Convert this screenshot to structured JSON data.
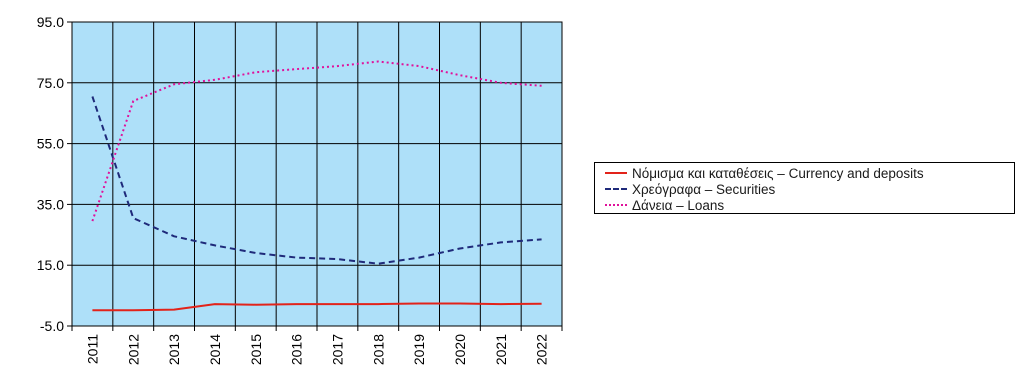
{
  "chart_data": {
    "type": "line",
    "title": "",
    "xlabel": "",
    "ylabel": "",
    "categories": [
      "2011",
      "2012",
      "2013",
      "2014",
      "2015",
      "2016",
      "2017",
      "2018",
      "2019",
      "2020",
      "2021",
      "2022"
    ],
    "ylim": [
      -5,
      95
    ],
    "yticks": [
      -5,
      15,
      35,
      55,
      75,
      95
    ],
    "ytick_labels": [
      "-5.0",
      "15.0",
      "35.0",
      "55.0",
      "75.0",
      "95.0"
    ],
    "grid": true,
    "plot_background": "#aee0f9",
    "legend_position": "right",
    "series": [
      {
        "name": "Νόμισμα και καταθέσεις – Currency and deposits",
        "color": "#e2231a",
        "style": "solid",
        "values": [
          0.2,
          0.2,
          0.4,
          2.2,
          2.0,
          2.2,
          2.2,
          2.2,
          2.4,
          2.4,
          2.2,
          2.3
        ]
      },
      {
        "name": "Χρεόγραφα – Securities",
        "color": "#1f2a7a",
        "style": "dashed",
        "values": [
          70.5,
          30.5,
          24.5,
          21.5,
          19.0,
          17.5,
          17.0,
          15.5,
          17.5,
          20.5,
          22.5,
          23.5
        ]
      },
      {
        "name": "Δάνεια – Loans",
        "color": "#e0119b",
        "style": "dotted",
        "values": [
          29.5,
          69.0,
          74.5,
          76.0,
          78.5,
          79.5,
          80.5,
          82.0,
          80.5,
          77.5,
          75.0,
          74.0
        ]
      }
    ]
  }
}
